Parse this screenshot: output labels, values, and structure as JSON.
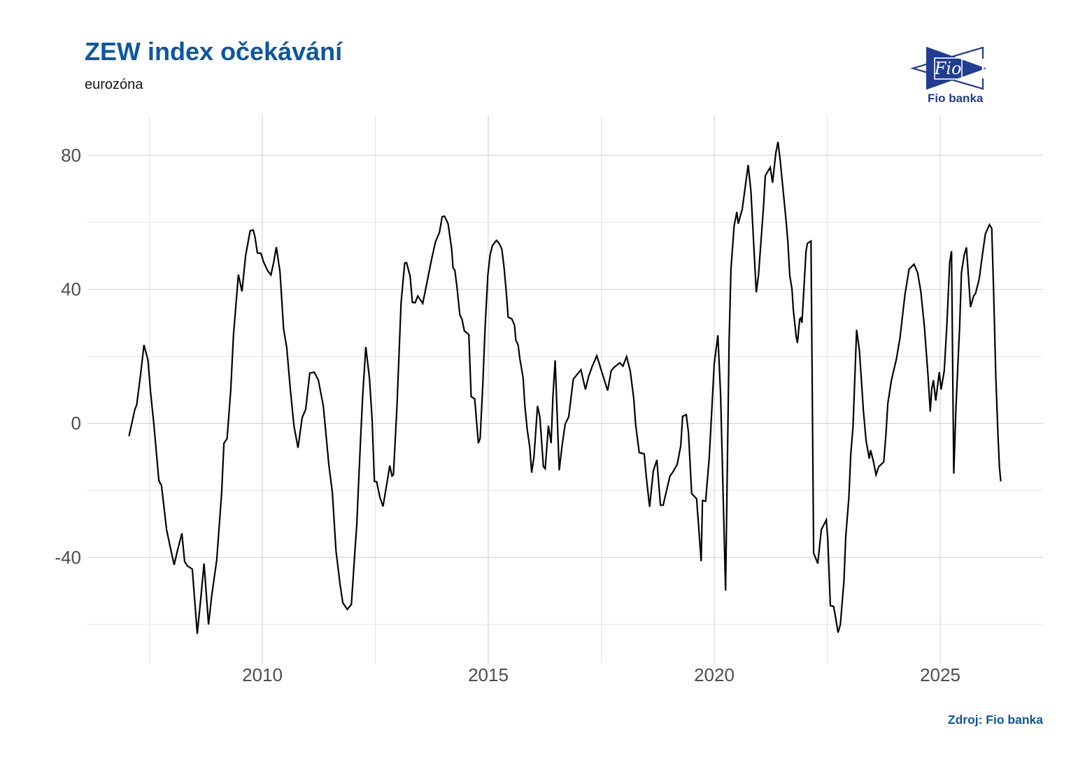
{
  "header": {
    "title": "ZEW index očekávání",
    "subtitle": "eurozóna"
  },
  "logo": {
    "mark_text": "Fio",
    "wordmark": "Fio banka"
  },
  "source_note": "Zdroj: Fio banka",
  "colors": {
    "title": "#0d57a1",
    "subtitle": "#141414",
    "source": "#0d57a1",
    "logo_navy": "#1f3d92",
    "line": "#000000",
    "grid_major": "#d5d5d5",
    "grid_minor": "#e4e4e4",
    "tick_label": "#4d4d4d"
  },
  "chart_data": {
    "type": "line",
    "title": "ZEW index očekávání",
    "subtitle": "eurozóna",
    "xlabel": "",
    "ylabel": "",
    "grid": true,
    "legend_position": "none",
    "x_axis": {
      "range": [
        2006.13,
        2027.275
      ],
      "major_ticks": [
        {
          "label": "2010",
          "value": 2010
        },
        {
          "label": "2015",
          "value": 2015
        },
        {
          "label": "2020",
          "value": 2020
        },
        {
          "label": "2025",
          "value": 2025
        }
      ],
      "minor_ticks": [
        2007.5,
        2012.5,
        2017.5,
        2022.5
      ]
    },
    "y_axis": {
      "range": [
        -71.7,
        91.9
      ],
      "major_ticks": [
        {
          "label": "80",
          "value": 80
        },
        {
          "label": "40",
          "value": 40
        },
        {
          "label": "0",
          "value": 0
        },
        {
          "label": "-40",
          "value": -40
        }
      ],
      "minor_ticks": [
        60,
        20,
        -20,
        -60
      ]
    },
    "series": [
      {
        "name": "ZEW index očekávání (eurozóna)",
        "color": "#000000",
        "points": [
          [
            2007.05,
            -3.8
          ],
          [
            2007.18,
            4.2
          ],
          [
            2007.22,
            5.5
          ],
          [
            2007.3,
            14
          ],
          [
            2007.38,
            23.4
          ],
          [
            2007.47,
            18.8
          ],
          [
            2007.53,
            9
          ],
          [
            2007.6,
            -0.4
          ],
          [
            2007.71,
            -17.1
          ],
          [
            2007.77,
            -18.6
          ],
          [
            2007.88,
            -31.7
          ],
          [
            2007.98,
            -38
          ],
          [
            2008.05,
            -42.2
          ],
          [
            2008.12,
            -38
          ],
          [
            2008.22,
            -32.8
          ],
          [
            2008.28,
            -41.2
          ],
          [
            2008.34,
            -42.5
          ],
          [
            2008.45,
            -43.5
          ],
          [
            2008.56,
            -62.8
          ],
          [
            2008.64,
            -52
          ],
          [
            2008.71,
            -41.8
          ],
          [
            2008.81,
            -60
          ],
          [
            2008.88,
            -51.3
          ],
          [
            2008.99,
            -40.8
          ],
          [
            2009.1,
            -20.6
          ],
          [
            2009.15,
            -5.9
          ],
          [
            2009.22,
            -4.6
          ],
          [
            2009.3,
            9.8
          ],
          [
            2009.36,
            26.2
          ],
          [
            2009.47,
            44.4
          ],
          [
            2009.55,
            39.4
          ],
          [
            2009.63,
            50
          ],
          [
            2009.73,
            57.5
          ],
          [
            2009.8,
            57.7
          ],
          [
            2009.84,
            55.4
          ],
          [
            2009.89,
            50.9
          ],
          [
            2009.97,
            50.7
          ],
          [
            2010.03,
            48.1
          ],
          [
            2010.12,
            45.5
          ],
          [
            2010.19,
            44.3
          ],
          [
            2010.25,
            48
          ],
          [
            2010.31,
            52.6
          ],
          [
            2010.39,
            45.3
          ],
          [
            2010.47,
            28.2
          ],
          [
            2010.54,
            22.6
          ],
          [
            2010.62,
            10
          ],
          [
            2010.7,
            -0.7
          ],
          [
            2010.79,
            -7.3
          ],
          [
            2010.88,
            1.7
          ],
          [
            2010.96,
            4.2
          ],
          [
            2011.05,
            15
          ],
          [
            2011.15,
            15.3
          ],
          [
            2011.24,
            12.9
          ],
          [
            2011.35,
            5.2
          ],
          [
            2011.47,
            -12.2
          ],
          [
            2011.55,
            -20.6
          ],
          [
            2011.63,
            -38
          ],
          [
            2011.72,
            -48
          ],
          [
            2011.78,
            -53.5
          ],
          [
            2011.88,
            -55.5
          ],
          [
            2011.97,
            -54
          ],
          [
            2012.05,
            -38
          ],
          [
            2012.09,
            -30.3
          ],
          [
            2012.12,
            -20.6
          ],
          [
            2012.17,
            -5.9
          ],
          [
            2012.22,
            8
          ],
          [
            2012.29,
            22.8
          ],
          [
            2012.37,
            13.6
          ],
          [
            2012.43,
            1
          ],
          [
            2012.48,
            -17.3
          ],
          [
            2012.53,
            -17.4
          ],
          [
            2012.6,
            -22
          ],
          [
            2012.67,
            -24.8
          ],
          [
            2012.74,
            -19.2
          ],
          [
            2012.82,
            -12.6
          ],
          [
            2012.87,
            -15.7
          ],
          [
            2012.9,
            -15.3
          ],
          [
            2012.98,
            5.2
          ],
          [
            2013.07,
            35.9
          ],
          [
            2013.15,
            47.8
          ],
          [
            2013.19,
            48
          ],
          [
            2013.27,
            43.9
          ],
          [
            2013.32,
            36.1
          ],
          [
            2013.38,
            36
          ],
          [
            2013.44,
            38
          ],
          [
            2013.55,
            35.8
          ],
          [
            2013.64,
            41.9
          ],
          [
            2013.75,
            49.3
          ],
          [
            2013.83,
            54.1
          ],
          [
            2013.92,
            57
          ],
          [
            2013.98,
            61.7
          ],
          [
            2014.03,
            61.8
          ],
          [
            2014.11,
            59.6
          ],
          [
            2014.19,
            52
          ],
          [
            2014.22,
            46.4
          ],
          [
            2014.26,
            45.7
          ],
          [
            2014.31,
            40.4
          ],
          [
            2014.37,
            32.4
          ],
          [
            2014.42,
            31
          ],
          [
            2014.47,
            27.6
          ],
          [
            2014.57,
            26.5
          ],
          [
            2014.62,
            8
          ],
          [
            2014.7,
            7.3
          ],
          [
            2014.78,
            -5.9
          ],
          [
            2014.82,
            -4.4
          ],
          [
            2014.88,
            12.2
          ],
          [
            2014.93,
            28.9
          ],
          [
            2014.99,
            44.3
          ],
          [
            2015.04,
            50.2
          ],
          [
            2015.09,
            53
          ],
          [
            2015.18,
            54.6
          ],
          [
            2015.24,
            53.7
          ],
          [
            2015.3,
            52
          ],
          [
            2015.35,
            46.4
          ],
          [
            2015.4,
            38.7
          ],
          [
            2015.44,
            31.7
          ],
          [
            2015.52,
            31.2
          ],
          [
            2015.58,
            29.3
          ],
          [
            2015.61,
            24.8
          ],
          [
            2015.66,
            23.4
          ],
          [
            2015.7,
            19.2
          ],
          [
            2015.77,
            13.6
          ],
          [
            2015.81,
            5.2
          ],
          [
            2015.86,
            -1.7
          ],
          [
            2015.92,
            -7.3
          ],
          [
            2015.96,
            -14.7
          ],
          [
            2016.01,
            -10
          ],
          [
            2016.09,
            5.2
          ],
          [
            2016.14,
            2
          ],
          [
            2016.22,
            -12.9
          ],
          [
            2016.26,
            -13.5
          ],
          [
            2016.33,
            -0.7
          ],
          [
            2016.39,
            -5.9
          ],
          [
            2016.43,
            8
          ],
          [
            2016.48,
            18.8
          ],
          [
            2016.57,
            -14
          ],
          [
            2016.63,
            -7
          ],
          [
            2016.7,
            -0.3
          ],
          [
            2016.78,
            2
          ],
          [
            2016.88,
            13.2
          ],
          [
            2016.93,
            14
          ],
          [
            2017.05,
            16
          ],
          [
            2017.15,
            10.1
          ],
          [
            2017.22,
            14
          ],
          [
            2017.3,
            17
          ],
          [
            2017.4,
            20.2
          ],
          [
            2017.44,
            18.5
          ],
          [
            2017.52,
            15
          ],
          [
            2017.64,
            9.8
          ],
          [
            2017.72,
            15.7
          ],
          [
            2017.78,
            16.7
          ],
          [
            2017.91,
            18.1
          ],
          [
            2017.98,
            17.1
          ],
          [
            2018.06,
            19.9
          ],
          [
            2018.14,
            15.7
          ],
          [
            2018.22,
            7.3
          ],
          [
            2018.26,
            -0.3
          ],
          [
            2018.34,
            -8.7
          ],
          [
            2018.45,
            -9.1
          ],
          [
            2018.5,
            -16.4
          ],
          [
            2018.57,
            -24.9
          ],
          [
            2018.65,
            -14.3
          ],
          [
            2018.73,
            -10.9
          ],
          [
            2018.81,
            -24.4
          ],
          [
            2018.87,
            -24.4
          ],
          [
            2018.96,
            -19.2
          ],
          [
            2019.02,
            -15.7
          ],
          [
            2019.08,
            -14.6
          ],
          [
            2019.18,
            -12.2
          ],
          [
            2019.26,
            -6.6
          ],
          [
            2019.3,
            2.1
          ],
          [
            2019.38,
            2.6
          ],
          [
            2019.43,
            -2.8
          ],
          [
            2019.5,
            -20.9
          ],
          [
            2019.61,
            -22.5
          ],
          [
            2019.64,
            -28.2
          ],
          [
            2019.71,
            -41.1
          ],
          [
            2019.74,
            -23
          ],
          [
            2019.81,
            -23.2
          ],
          [
            2019.89,
            -10.1
          ],
          [
            2019.95,
            5.2
          ],
          [
            2020.0,
            17.8
          ],
          [
            2020.08,
            26.3
          ],
          [
            2020.14,
            8.5
          ],
          [
            2020.25,
            -49.9
          ],
          [
            2020.33,
            25
          ],
          [
            2020.37,
            46
          ],
          [
            2020.44,
            58.9
          ],
          [
            2020.5,
            63.1
          ],
          [
            2020.53,
            59.6
          ],
          [
            2020.62,
            64
          ],
          [
            2020.75,
            77.1
          ],
          [
            2020.81,
            69.4
          ],
          [
            2020.85,
            59.6
          ],
          [
            2020.9,
            46.4
          ],
          [
            2020.93,
            39.1
          ],
          [
            2020.98,
            44.3
          ],
          [
            2021.04,
            55.4
          ],
          [
            2021.09,
            64.5
          ],
          [
            2021.13,
            73.9
          ],
          [
            2021.2,
            75.5
          ],
          [
            2021.24,
            76.4
          ],
          [
            2021.29,
            71.8
          ],
          [
            2021.36,
            80.5
          ],
          [
            2021.41,
            84
          ],
          [
            2021.46,
            78.5
          ],
          [
            2021.5,
            72.9
          ],
          [
            2021.55,
            65.9
          ],
          [
            2021.6,
            58.9
          ],
          [
            2021.63,
            54
          ],
          [
            2021.67,
            44.3
          ],
          [
            2021.72,
            40.1
          ],
          [
            2021.75,
            33.8
          ],
          [
            2021.81,
            26.2
          ],
          [
            2021.84,
            24
          ],
          [
            2021.89,
            31
          ],
          [
            2021.91,
            31.4
          ],
          [
            2021.94,
            30
          ],
          [
            2022.03,
            51.3
          ],
          [
            2022.06,
            53.7
          ],
          [
            2022.14,
            54.4
          ],
          [
            2022.2,
            -38.7
          ],
          [
            2022.29,
            -41.8
          ],
          [
            2022.37,
            -31.7
          ],
          [
            2022.48,
            -28.8
          ],
          [
            2022.51,
            -34.2
          ],
          [
            2022.57,
            -54.4
          ],
          [
            2022.64,
            -54.6
          ],
          [
            2022.68,
            -57.5
          ],
          [
            2022.74,
            -62.4
          ],
          [
            2022.79,
            -60
          ],
          [
            2022.87,
            -47.1
          ],
          [
            2022.91,
            -33.8
          ],
          [
            2022.98,
            -22
          ],
          [
            2023.02,
            -9.4
          ],
          [
            2023.07,
            -1
          ],
          [
            2023.15,
            27.9
          ],
          [
            2023.21,
            22
          ],
          [
            2023.26,
            12.2
          ],
          [
            2023.3,
            3.8
          ],
          [
            2023.36,
            -5.2
          ],
          [
            2023.43,
            -10.5
          ],
          [
            2023.46,
            -8
          ],
          [
            2023.52,
            -11.2
          ],
          [
            2023.58,
            -15.3
          ],
          [
            2023.64,
            -12.9
          ],
          [
            2023.75,
            -11.5
          ],
          [
            2023.8,
            -3.1
          ],
          [
            2023.84,
            5.9
          ],
          [
            2023.92,
            12.9
          ],
          [
            2024.03,
            19.2
          ],
          [
            2024.11,
            25.5
          ],
          [
            2024.22,
            38.4
          ],
          [
            2024.31,
            46
          ],
          [
            2024.42,
            47.5
          ],
          [
            2024.5,
            45
          ],
          [
            2024.57,
            39.4
          ],
          [
            2024.65,
            28.9
          ],
          [
            2024.73,
            14.3
          ],
          [
            2024.78,
            3.5
          ],
          [
            2024.81,
            10.1
          ],
          [
            2024.85,
            12.9
          ],
          [
            2024.9,
            6.8
          ],
          [
            2024.98,
            15.3
          ],
          [
            2025.02,
            10.1
          ],
          [
            2025.09,
            15.7
          ],
          [
            2025.15,
            30
          ],
          [
            2025.21,
            48
          ],
          [
            2025.25,
            51.4
          ],
          [
            2025.3,
            -15
          ],
          [
            2025.35,
            5
          ],
          [
            2025.43,
            28.9
          ],
          [
            2025.47,
            45
          ],
          [
            2025.53,
            50.2
          ],
          [
            2025.58,
            52.5
          ],
          [
            2025.63,
            42.9
          ],
          [
            2025.67,
            34.7
          ],
          [
            2025.74,
            38
          ],
          [
            2025.78,
            38.7
          ],
          [
            2025.86,
            42.9
          ],
          [
            2025.94,
            51
          ],
          [
            2026.0,
            56.5
          ],
          [
            2026.09,
            59.3
          ],
          [
            2026.14,
            58.2
          ],
          [
            2026.18,
            40
          ],
          [
            2026.23,
            14
          ],
          [
            2026.28,
            -4
          ],
          [
            2026.31,
            -13
          ],
          [
            2026.34,
            -17.3
          ]
        ]
      }
    ]
  }
}
